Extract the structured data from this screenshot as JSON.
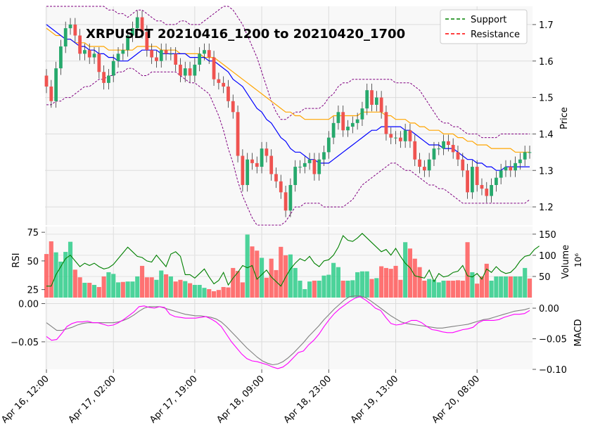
{
  "chart_data": {
    "type": "candlestick",
    "title": "XRPUSDT 20210416_1200 to 20210420_1700",
    "legend": {
      "placement": "top-right",
      "entries": [
        "Support",
        "Resistance"
      ]
    },
    "legend_colors": {
      "Support": "#008000",
      "Resistance": "#ff0000"
    },
    "x_tick_labels": [
      "Apr 16, 12:00",
      "Apr 17, 02:00",
      "Apr 17, 19:00",
      "Apr 18, 09:00",
      "Apr 18, 23:00",
      "Apr 19, 13:00",
      "Apr 20, 08:00"
    ],
    "x_tick_index": [
      0,
      14,
      31,
      45,
      59,
      73,
      90
    ],
    "price_panel": {
      "ylabel": "Price",
      "ylim": [
        1.15,
        1.75
      ],
      "yticks": [
        1.2,
        1.3,
        1.4,
        1.5,
        1.6,
        1.7
      ],
      "ytick_labels": [
        "1.2",
        "1.3",
        "1.4",
        "1.5",
        "1.6",
        "1.7"
      ],
      "up_color": "#26a96c",
      "down_color": "#ef5350",
      "ohlc_close": [
        1.53,
        1.49,
        1.58,
        1.64,
        1.69,
        1.7,
        1.67,
        1.62,
        1.63,
        1.61,
        1.62,
        1.57,
        1.54,
        1.56,
        1.6,
        1.62,
        1.63,
        1.67,
        1.69,
        1.72,
        1.68,
        1.63,
        1.61,
        1.6,
        1.63,
        1.62,
        1.62,
        1.59,
        1.56,
        1.58,
        1.56,
        1.59,
        1.62,
        1.63,
        1.61,
        1.55,
        1.54,
        1.53,
        1.49,
        1.46,
        1.34,
        1.26,
        1.33,
        1.32,
        1.31,
        1.36,
        1.34,
        1.29,
        1.27,
        1.24,
        1.19,
        1.26,
        1.31,
        1.31,
        1.32,
        1.33,
        1.29,
        1.33,
        1.35,
        1.39,
        1.43,
        1.46,
        1.41,
        1.42,
        1.43,
        1.44,
        1.47,
        1.52,
        1.48,
        1.5,
        1.46,
        1.4,
        1.39,
        1.39,
        1.38,
        1.41,
        1.38,
        1.33,
        1.31,
        1.3,
        1.33,
        1.36,
        1.36,
        1.38,
        1.37,
        1.35,
        1.33,
        1.3,
        1.24,
        1.31,
        1.26,
        1.25,
        1.23,
        1.26,
        1.28,
        1.3,
        1.31,
        1.3,
        1.32,
        1.33,
        1.35,
        1.35
      ],
      "sma_line": [
        1.7,
        1.69,
        1.68,
        1.67,
        1.66,
        1.66,
        1.65,
        1.64,
        1.64,
        1.63,
        1.63,
        1.62,
        1.62,
        1.61,
        1.61,
        1.6,
        1.6,
        1.6,
        1.61,
        1.62,
        1.63,
        1.63,
        1.63,
        1.63,
        1.62,
        1.62,
        1.62,
        1.62,
        1.62,
        1.62,
        1.61,
        1.61,
        1.61,
        1.61,
        1.6,
        1.6,
        1.59,
        1.58,
        1.57,
        1.55,
        1.54,
        1.53,
        1.51,
        1.49,
        1.47,
        1.46,
        1.44,
        1.43,
        1.41,
        1.39,
        1.38,
        1.36,
        1.35,
        1.35,
        1.34,
        1.33,
        1.33,
        1.32,
        1.32,
        1.32,
        1.33,
        1.34,
        1.35,
        1.36,
        1.37,
        1.38,
        1.39,
        1.4,
        1.41,
        1.41,
        1.42,
        1.42,
        1.42,
        1.42,
        1.42,
        1.41,
        1.41,
        1.4,
        1.39,
        1.38,
        1.37,
        1.37,
        1.37,
        1.36,
        1.36,
        1.36,
        1.35,
        1.34,
        1.33,
        1.33,
        1.32,
        1.32,
        1.31,
        1.31,
        1.3,
        1.3,
        1.31,
        1.31,
        1.31,
        1.31,
        1.31,
        1.31
      ],
      "mid_line": [
        1.69,
        1.68,
        1.67,
        1.67,
        1.66,
        1.66,
        1.65,
        1.65,
        1.65,
        1.64,
        1.64,
        1.64,
        1.64,
        1.63,
        1.63,
        1.63,
        1.63,
        1.63,
        1.63,
        1.64,
        1.64,
        1.64,
        1.64,
        1.64,
        1.63,
        1.63,
        1.63,
        1.63,
        1.62,
        1.62,
        1.62,
        1.62,
        1.62,
        1.61,
        1.61,
        1.61,
        1.6,
        1.59,
        1.58,
        1.57,
        1.56,
        1.55,
        1.54,
        1.53,
        1.52,
        1.51,
        1.5,
        1.49,
        1.48,
        1.47,
        1.46,
        1.46,
        1.45,
        1.45,
        1.44,
        1.44,
        1.44,
        1.44,
        1.44,
        1.44,
        1.45,
        1.45,
        1.45,
        1.45,
        1.45,
        1.45,
        1.46,
        1.46,
        1.46,
        1.46,
        1.46,
        1.45,
        1.45,
        1.44,
        1.44,
        1.44,
        1.43,
        1.43,
        1.42,
        1.42,
        1.41,
        1.41,
        1.41,
        1.4,
        1.4,
        1.4,
        1.39,
        1.39,
        1.38,
        1.38,
        1.37,
        1.37,
        1.37,
        1.36,
        1.36,
        1.36,
        1.36,
        1.36,
        1.35,
        1.35,
        1.35,
        1.35
      ],
      "band_upper": [
        1.79,
        1.79,
        1.79,
        1.79,
        1.78,
        1.78,
        1.77,
        1.77,
        1.76,
        1.76,
        1.75,
        1.75,
        1.75,
        1.74,
        1.74,
        1.73,
        1.73,
        1.72,
        1.73,
        1.74,
        1.74,
        1.73,
        1.72,
        1.71,
        1.71,
        1.7,
        1.7,
        1.7,
        1.71,
        1.71,
        1.7,
        1.7,
        1.7,
        1.71,
        1.72,
        1.73,
        1.74,
        1.75,
        1.75,
        1.74,
        1.72,
        1.7,
        1.67,
        1.64,
        1.61,
        1.57,
        1.53,
        1.49,
        1.46,
        1.44,
        1.44,
        1.45,
        1.46,
        1.46,
        1.47,
        1.47,
        1.47,
        1.47,
        1.48,
        1.5,
        1.51,
        1.53,
        1.54,
        1.54,
        1.55,
        1.55,
        1.55,
        1.55,
        1.55,
        1.55,
        1.55,
        1.55,
        1.55,
        1.54,
        1.54,
        1.54,
        1.54,
        1.53,
        1.52,
        1.5,
        1.48,
        1.46,
        1.44,
        1.43,
        1.43,
        1.42,
        1.42,
        1.41,
        1.4,
        1.4,
        1.4,
        1.39,
        1.39,
        1.39,
        1.39,
        1.4,
        1.4,
        1.4,
        1.4,
        1.4,
        1.4,
        1.4
      ],
      "band_lower": [
        1.48,
        1.48,
        1.49,
        1.49,
        1.5,
        1.5,
        1.51,
        1.52,
        1.53,
        1.53,
        1.54,
        1.55,
        1.55,
        1.56,
        1.56,
        1.57,
        1.57,
        1.58,
        1.58,
        1.57,
        1.56,
        1.56,
        1.57,
        1.57,
        1.57,
        1.57,
        1.57,
        1.57,
        1.56,
        1.55,
        1.54,
        1.54,
        1.53,
        1.52,
        1.51,
        1.48,
        1.45,
        1.41,
        1.36,
        1.32,
        1.27,
        1.23,
        1.2,
        1.17,
        1.15,
        1.13,
        1.12,
        1.12,
        1.13,
        1.14,
        1.16,
        1.18,
        1.2,
        1.2,
        1.21,
        1.21,
        1.21,
        1.21,
        1.2,
        1.2,
        1.2,
        1.2,
        1.2,
        1.21,
        1.22,
        1.24,
        1.26,
        1.27,
        1.28,
        1.29,
        1.3,
        1.31,
        1.32,
        1.32,
        1.31,
        1.3,
        1.3,
        1.29,
        1.28,
        1.27,
        1.26,
        1.26,
        1.25,
        1.25,
        1.24,
        1.23,
        1.22,
        1.21,
        1.21,
        1.21,
        1.21,
        1.21,
        1.21,
        1.21,
        1.21,
        1.21,
        1.21,
        1.21,
        1.21,
        1.21,
        1.21,
        1.22
      ]
    },
    "rsi_panel": {
      "ylabel": "RSI",
      "ylim": [
        18,
        80
      ],
      "yticks": [
        25,
        50,
        75
      ],
      "ytick_labels": [
        "25",
        "50",
        "75"
      ],
      "values": [
        28,
        28,
        38,
        45,
        52,
        55,
        50,
        45,
        48,
        46,
        48,
        45,
        43,
        44,
        47,
        52,
        57,
        62,
        58,
        54,
        53,
        50,
        49,
        55,
        50,
        45,
        56,
        58,
        54,
        38,
        38,
        35,
        39,
        43,
        36,
        30,
        33,
        40,
        29,
        35,
        40,
        46,
        44,
        46,
        34,
        38,
        42,
        36,
        32,
        28,
        36,
        43,
        48,
        52,
        50,
        54,
        48,
        45,
        50,
        51,
        55,
        62,
        72,
        68,
        67,
        70,
        74,
        70,
        66,
        62,
        58,
        60,
        55,
        61,
        54,
        48,
        44,
        37,
        36,
        35,
        42,
        32,
        39,
        36,
        37,
        40,
        41,
        46,
        37,
        36,
        39,
        34,
        43,
        40,
        45,
        41,
        39,
        40,
        44,
        50,
        54,
        55,
        60,
        63
      ]
    },
    "volume_panel": {
      "ylabel": "Volume",
      "scale_label": "10⁶",
      "ylim": [
        0,
        168
      ],
      "yticks": [
        50,
        100,
        150
      ],
      "ytick_labels": [
        "50",
        "100",
        "150"
      ],
      "values": [
        103,
        133,
        107,
        85,
        108,
        132,
        66,
        48,
        35,
        35,
        30,
        25,
        50,
        60,
        56,
        36,
        37,
        38,
        38,
        50,
        75,
        48,
        48,
        42,
        64,
        55,
        50,
        38,
        42,
        39,
        34,
        30,
        30,
        23,
        20,
        15,
        18,
        25,
        24,
        70,
        63,
        36,
        149,
        121,
        111,
        94,
        47,
        92,
        65,
        120,
        100,
        102,
        70,
        40,
        20,
        38,
        40,
        40,
        52,
        54,
        82,
        72,
        40,
        40,
        41,
        60,
        62,
        62,
        44,
        46,
        74,
        70,
        68,
        75,
        42,
        131,
        116,
        92,
        72,
        40,
        44,
        42,
        36,
        40,
        40,
        40,
        41,
        40,
        131,
        60,
        33,
        50,
        80,
        40,
        50,
        50,
        50,
        50,
        50,
        50,
        70,
        45
      ],
      "bar_colors_up_down": [
        0,
        0,
        1,
        1,
        1,
        1,
        0,
        0,
        1,
        0,
        1,
        0,
        0,
        1,
        1,
        1,
        0,
        1,
        1,
        1,
        0,
        0,
        0,
        1,
        1,
        0,
        1,
        0,
        0,
        1,
        0,
        1,
        1,
        1,
        0,
        0,
        0,
        0,
        0,
        0,
        0,
        0,
        1,
        0,
        0,
        1,
        0,
        0,
        0,
        0,
        0,
        1,
        1,
        1,
        1,
        1,
        0,
        1,
        1,
        1,
        1,
        1,
        0,
        1,
        1,
        1,
        1,
        1,
        0,
        1,
        0,
        0,
        0,
        0,
        0,
        1,
        0,
        0,
        0,
        0,
        1,
        1,
        1,
        1,
        0,
        0,
        0,
        0,
        0,
        1,
        0,
        0,
        0,
        1,
        1,
        1,
        1,
        0,
        1,
        1,
        1,
        0
      ]
    },
    "macd_panel": {
      "ylabel": "MACD",
      "left_ylim": [
        -0.086,
        0.006
      ],
      "left_yticks": [
        0.0,
        -0.05
      ],
      "left_ytick_labels": [
        "0.00",
        "−0.05"
      ],
      "right_ylim": [
        -0.1,
        0.015
      ],
      "right_yticks": [
        0.0,
        -0.05,
        -0.1
      ],
      "right_ytick_labels": [
        "0.00",
        "−0.05",
        "−0.10"
      ],
      "macd_line": [
        -0.043,
        -0.048,
        -0.047,
        -0.039,
        -0.03,
        -0.026,
        -0.024,
        -0.024,
        -0.023,
        -0.025,
        -0.025,
        -0.027,
        -0.029,
        -0.028,
        -0.025,
        -0.021,
        -0.016,
        -0.011,
        -0.004,
        -0.003,
        -0.005,
        -0.006,
        -0.004,
        -0.005,
        -0.014,
        -0.017,
        -0.018,
        -0.019,
        -0.019,
        -0.019,
        -0.018,
        -0.017,
        -0.02,
        -0.024,
        -0.03,
        -0.04,
        -0.05,
        -0.058,
        -0.066,
        -0.072,
        -0.075,
        -0.076,
        -0.078,
        -0.08,
        -0.083,
        -0.085,
        -0.083,
        -0.078,
        -0.071,
        -0.064,
        -0.062,
        -0.054,
        -0.048,
        -0.04,
        -0.03,
        -0.021,
        -0.013,
        -0.007,
        -0.002,
        0.003,
        0.007,
        0.009,
        0.005,
        0.0,
        -0.006,
        -0.009,
        -0.018,
        -0.026,
        -0.028,
        -0.027,
        -0.025,
        -0.022,
        -0.022,
        -0.025,
        -0.03,
        -0.034,
        -0.035,
        -0.037,
        -0.038,
        -0.038,
        -0.036,
        -0.034,
        -0.033,
        -0.031,
        -0.025,
        -0.022,
        -0.022,
        -0.022,
        -0.021,
        -0.018,
        -0.016,
        -0.014,
        -0.014,
        -0.013,
        -0.009
      ],
      "signal_line": [
        -0.025,
        -0.03,
        -0.035,
        -0.035,
        -0.033,
        -0.031,
        -0.028,
        -0.026,
        -0.025,
        -0.025,
        -0.025,
        -0.025,
        -0.025,
        -0.025,
        -0.024,
        -0.022,
        -0.019,
        -0.015,
        -0.01,
        -0.006,
        -0.004,
        -0.004,
        -0.004,
        -0.006,
        -0.008,
        -0.01,
        -0.012,
        -0.014,
        -0.015,
        -0.016,
        -0.016,
        -0.017,
        -0.018,
        -0.02,
        -0.024,
        -0.03,
        -0.037,
        -0.044,
        -0.051,
        -0.058,
        -0.064,
        -0.07,
        -0.075,
        -0.078,
        -0.08,
        -0.079,
        -0.076,
        -0.071,
        -0.065,
        -0.058,
        -0.051,
        -0.043,
        -0.036,
        -0.029,
        -0.021,
        -0.014,
        -0.007,
        -0.001,
        0.005,
        0.009,
        0.01,
        0.01,
        0.008,
        0.004,
        -0.001,
        -0.006,
        -0.011,
        -0.016,
        -0.02,
        -0.024,
        -0.026,
        -0.027,
        -0.028,
        -0.029,
        -0.03,
        -0.031,
        -0.032,
        -0.032,
        -0.031,
        -0.03,
        -0.029,
        -0.028,
        -0.027,
        -0.025,
        -0.023,
        -0.021,
        -0.02,
        -0.018,
        -0.016,
        -0.014,
        -0.012,
        -0.01,
        -0.009,
        -0.008,
        -0.006
      ]
    }
  }
}
